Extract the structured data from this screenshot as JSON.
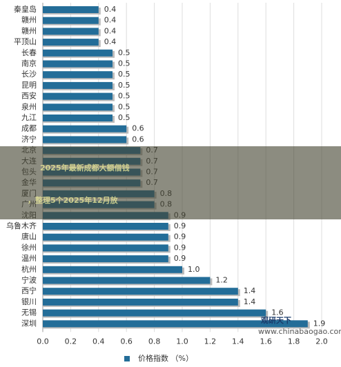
{
  "chart_data": {
    "type": "barh",
    "categories": [
      "秦皇岛",
      "赣州",
      "赣州",
      "平顶山",
      "长春",
      "南京",
      "长沙",
      "昆明",
      "西安",
      "泉州",
      "九江",
      "成都",
      "济宁",
      "北京",
      "大连",
      "包头",
      "金华",
      "厦门",
      "广州",
      "沈阳",
      "乌鲁木齐",
      "唐山",
      "徐州",
      "温州",
      "杭州",
      "宁波",
      "西宁",
      "银川",
      "无锡",
      "深圳"
    ],
    "series": [
      {
        "name": "价格指数 （%）",
        "color": "#236d98",
        "values": [
          0.4,
          0.4,
          0.4,
          0.4,
          0.5,
          0.5,
          0.5,
          0.5,
          0.5,
          0.5,
          0.5,
          0.6,
          0.6,
          0.7,
          0.7,
          0.7,
          0.7,
          0.8,
          0.8,
          0.9,
          0.9,
          0.9,
          0.9,
          0.9,
          1.0,
          1.2,
          1.4,
          1.4,
          1.6,
          1.9
        ],
        "value_labels": [
          "0.4",
          "0.4",
          "0.4",
          "0.4",
          "0.5",
          "0.5",
          "0.5",
          "0.5",
          "0.5",
          "0.5",
          "0.5",
          "0.6",
          "0.6",
          "0.7",
          "0.7",
          "0.7",
          "0.7",
          "0.8",
          "0.8",
          "0.9",
          "0.9",
          "0.9",
          "0.9",
          "0.9",
          "1.0",
          "1.2",
          "1.4",
          "1.4",
          "1.6",
          "1.9"
        ]
      }
    ],
    "xlim": [
      0,
      2
    ],
    "xticks": [
      {
        "value": 0,
        "label": "0.0"
      },
      {
        "value": 0.2,
        "label": "0.2"
      },
      {
        "value": 0.4,
        "label": "0.4"
      },
      {
        "value": 0.6,
        "label": "0.6"
      },
      {
        "value": 0.8,
        "label": "0.8"
      },
      {
        "value": 1,
        "label": "1.0"
      },
      {
        "value": 1.2,
        "label": "1.2"
      },
      {
        "value": 1.4,
        "label": "1.4"
      },
      {
        "value": 1.6,
        "label": "1.6"
      },
      {
        "value": 1.8,
        "label": "1.8"
      },
      {
        "value": 2,
        "label": "2.0"
      }
    ],
    "grid": true,
    "legend": "bottom",
    "watermark": [
      "观研天下",
      "www.chinabaogao.com"
    ]
  },
  "banner": {
    "lines": [
      "2025年最新成都大额借钱",
      "，整理5个2025年12月放"
    ]
  }
}
